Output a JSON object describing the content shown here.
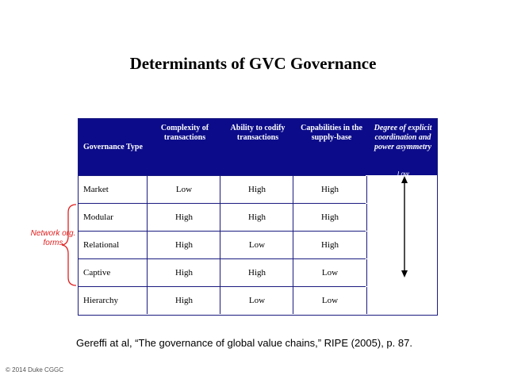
{
  "title": "Determinants of GVC Governance",
  "table": {
    "headers": {
      "governance_type": "Governance Type",
      "complexity": "Complexity of transactions",
      "codify": "Ability to codify transactions",
      "capabilities": "Capabilities in the supply-base",
      "degree": "Degree of explicit coordination and power asymmetry"
    },
    "low_label": "Low",
    "rows": [
      {
        "type": "Market",
        "complexity": "Low",
        "codify": "High",
        "capabilities": "High"
      },
      {
        "type": "Modular",
        "complexity": "High",
        "codify": "High",
        "capabilities": "High"
      },
      {
        "type": "Relational",
        "complexity": "High",
        "codify": "Low",
        "capabilities": "High"
      },
      {
        "type": "Captive",
        "complexity": "High",
        "codify": "High",
        "capabilities": "Low"
      },
      {
        "type": "Hierarchy",
        "complexity": "High",
        "codify": "Low",
        "capabilities": "Low"
      }
    ]
  },
  "annotation": {
    "label": "Network org. forms",
    "color": "#e02020"
  },
  "citation": "Gereffi at al, “The governance of global value chains,” RIPE (2005), p. 87.",
  "footer": "© 2014 Duke CGGC",
  "colors": {
    "header_bg": "#0c0c8a",
    "border": "#1a1a80"
  }
}
